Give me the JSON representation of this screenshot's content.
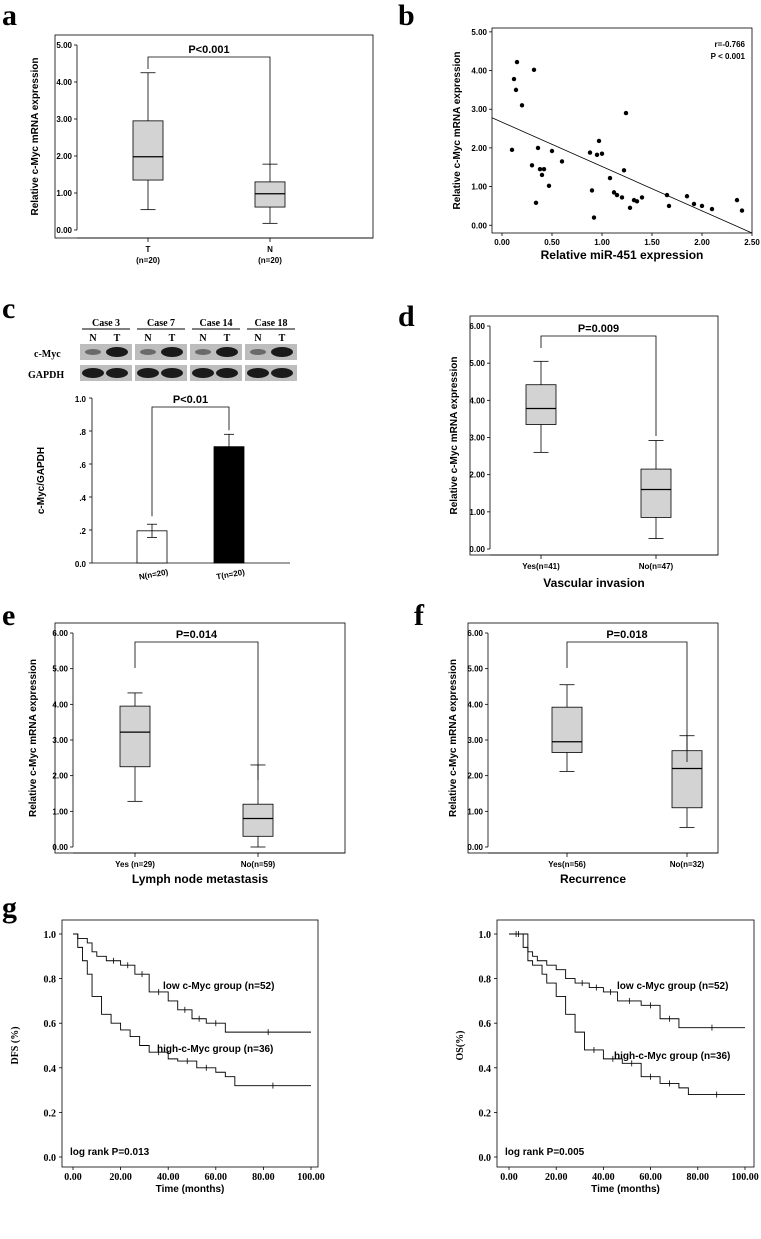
{
  "panels": {
    "a": "a",
    "b": "b",
    "c": "c",
    "d": "d",
    "e": "e",
    "f": "f",
    "g": "g"
  },
  "chart_data": [
    {
      "id": "a",
      "type": "box",
      "ylabel": "Relative c-Myc mRNA expression",
      "yticks": [
        "0.00",
        "1.00",
        "2.00",
        "3.00",
        "4.00",
        "5.00"
      ],
      "ylim": [
        0,
        5
      ],
      "groups": [
        {
          "label": "T",
          "sublabel": "(n=20)",
          "min": 0.55,
          "q1": 1.35,
          "median": 1.98,
          "q3": 2.95,
          "max": 4.25
        },
        {
          "label": "N",
          "sublabel": "(n=20)",
          "min": 0.18,
          "q1": 0.62,
          "median": 0.98,
          "q3": 1.3,
          "max": 1.78
        }
      ],
      "annotation": "P<0.001",
      "xlabel": ""
    },
    {
      "id": "b",
      "type": "scatter",
      "ylabel": "Relative c-Myc mRNA expression",
      "xlabel": "Relative miR-451 expression",
      "xticks": [
        "0.00",
        "0.50",
        "1.00",
        "1.50",
        "2.00",
        "2.50"
      ],
      "xlim": [
        -0.1,
        2.5
      ],
      "yticks": [
        "0.00",
        "1.00",
        "2.00",
        "3.00",
        "4.00",
        "5.00"
      ],
      "ylim": [
        -0.2,
        5.1
      ],
      "stat_r": "r=-0.766",
      "stat_p": "P < 0.001",
      "fit": {
        "x0": -0.1,
        "y0": 2.78,
        "x1": 2.5,
        "y1": -0.2
      },
      "points": [
        [
          0.1,
          1.95
        ],
        [
          0.12,
          3.78
        ],
        [
          0.14,
          3.5
        ],
        [
          0.15,
          4.22
        ],
        [
          0.2,
          3.1
        ],
        [
          0.3,
          1.55
        ],
        [
          0.32,
          4.02
        ],
        [
          0.34,
          0.58
        ],
        [
          0.36,
          2.0
        ],
        [
          0.38,
          1.45
        ],
        [
          0.4,
          1.3
        ],
        [
          0.42,
          1.45
        ],
        [
          0.47,
          1.02
        ],
        [
          0.5,
          1.92
        ],
        [
          0.6,
          1.65
        ],
        [
          0.88,
          1.88
        ],
        [
          0.9,
          0.9
        ],
        [
          0.92,
          0.2
        ],
        [
          0.95,
          1.82
        ],
        [
          0.97,
          2.18
        ],
        [
          1.0,
          1.85
        ],
        [
          1.08,
          1.22
        ],
        [
          1.12,
          0.85
        ],
        [
          1.15,
          0.78
        ],
        [
          1.2,
          0.72
        ],
        [
          1.22,
          1.42
        ],
        [
          1.24,
          2.9
        ],
        [
          1.28,
          0.45
        ],
        [
          1.32,
          0.65
        ],
        [
          1.35,
          0.62
        ],
        [
          1.4,
          0.72
        ],
        [
          1.65,
          0.78
        ],
        [
          1.67,
          0.5
        ],
        [
          1.85,
          0.75
        ],
        [
          1.92,
          0.55
        ],
        [
          2.0,
          0.5
        ],
        [
          2.1,
          0.42
        ],
        [
          2.35,
          0.65
        ],
        [
          2.4,
          0.38
        ]
      ]
    },
    {
      "id": "c",
      "type": "bar",
      "blot": {
        "cases": [
          "Case 3",
          "Case 7",
          "Case 14",
          "Case 18"
        ],
        "lanes": [
          "N",
          "T"
        ],
        "rows": [
          "c-Myc",
          "GAPDH"
        ]
      },
      "ylabel": "c-Myc/GAPDH",
      "yticks": [
        "0.0",
        ".2",
        ".4",
        ".6",
        ".8",
        "1.0"
      ],
      "ylim": [
        0,
        1
      ],
      "categories": [
        "N(n=20)",
        "T(n=20)"
      ],
      "values": [
        0.195,
        0.705
      ],
      "errors": [
        0.04,
        0.075
      ],
      "colors": [
        "#ffffff",
        "#000000"
      ],
      "annotation": "P<0.01"
    },
    {
      "id": "d",
      "type": "box",
      "ylabel": "Relative c-Myc mRNA expression",
      "yticks": [
        "0.00",
        "1.00",
        "2.00",
        "3.00",
        "4.00",
        "5.00",
        "6.00"
      ],
      "ylim": [
        0,
        6
      ],
      "groups": [
        {
          "label": "Yes(n=41)",
          "min": 2.6,
          "q1": 3.35,
          "median": 3.78,
          "q3": 4.42,
          "max": 5.05
        },
        {
          "label": "No(n=47)",
          "min": 0.28,
          "q1": 0.85,
          "median": 1.6,
          "q3": 2.15,
          "max": 2.92
        }
      ],
      "annotation": "P=0.009",
      "xlabel": "Vascular invasion"
    },
    {
      "id": "e",
      "type": "box",
      "ylabel": "Relative c-Myc mRNA expression",
      "yticks": [
        "0.00",
        "1.00",
        "2.00",
        "3.00",
        "4.00",
        "5.00",
        "6.00"
      ],
      "ylim": [
        0,
        6
      ],
      "groups": [
        {
          "label": "Yes (n=29)",
          "min": 1.28,
          "q1": 2.25,
          "median": 3.22,
          "q3": 3.95,
          "max": 4.32
        },
        {
          "label": "No(n=59)",
          "min": 0.0,
          "q1": 0.3,
          "median": 0.8,
          "q3": 1.2,
          "max": 2.3
        }
      ],
      "annotation": "P=0.014",
      "xlabel": "Lymph node metastasis"
    },
    {
      "id": "f",
      "type": "box",
      "ylabel": "Relative c-Myc mRNA expression",
      "yticks": [
        "0.00",
        "1.00",
        "2.00",
        "3.00",
        "4.00",
        "5.00",
        "6.00"
      ],
      "ylim": [
        0,
        6
      ],
      "groups": [
        {
          "label": "Yes(n=56)",
          "min": 2.12,
          "q1": 2.65,
          "median": 2.95,
          "q3": 3.92,
          "max": 4.55
        },
        {
          "label": "No(n=32)",
          "min": 0.55,
          "q1": 1.1,
          "median": 2.2,
          "q3": 2.7,
          "max": 3.12
        }
      ],
      "annotation": "P=0.018",
      "xlabel": "Recurrence"
    },
    {
      "id": "g1",
      "type": "line",
      "ylabel": "DFS (%)",
      "xlabel": "Time (months)",
      "xticks": [
        "0.00",
        "20.00",
        "40.00",
        "60.00",
        "80.00",
        "100.00"
      ],
      "xlim": [
        0,
        100
      ],
      "yticks": [
        "0.0",
        "0.2",
        "0.4",
        "0.6",
        "0.8",
        "1.0"
      ],
      "ylim": [
        0,
        1
      ],
      "series": [
        {
          "name": "low c-Myc group (n=52)",
          "x": [
            0,
            2,
            6,
            8,
            10,
            14,
            20,
            26,
            32,
            40,
            44,
            50,
            56,
            64,
            100
          ],
          "y": [
            1,
            0.98,
            0.96,
            0.92,
            0.9,
            0.88,
            0.86,
            0.82,
            0.74,
            0.7,
            0.66,
            0.62,
            0.6,
            0.56,
            0.56
          ]
        },
        {
          "name": "high-c-Myc group (n=36)",
          "x": [
            0,
            2,
            4,
            6,
            8,
            12,
            16,
            20,
            24,
            28,
            32,
            40,
            44,
            52,
            60,
            64,
            68,
            100
          ],
          "y": [
            1,
            0.94,
            0.88,
            0.82,
            0.72,
            0.64,
            0.6,
            0.57,
            0.54,
            0.5,
            0.47,
            0.44,
            0.43,
            0.4,
            0.38,
            0.36,
            0.32,
            0.32
          ]
        }
      ],
      "annotation": "log rank P=0.013"
    },
    {
      "id": "g2",
      "type": "line",
      "ylabel": "OS(%)",
      "xlabel": "Time (months)",
      "xticks": [
        "0.00",
        "20.00",
        "40.00",
        "60.00",
        "80.00",
        "100.00"
      ],
      "xlim": [
        0,
        100
      ],
      "yticks": [
        "0.0",
        "0.2",
        "0.4",
        "0.6",
        "0.8",
        "1.0"
      ],
      "ylim": [
        0,
        1
      ],
      "series": [
        {
          "name": "low c-Myc group (n=52)",
          "x": [
            0,
            6,
            8,
            10,
            12,
            16,
            20,
            24,
            28,
            34,
            40,
            46,
            56,
            64,
            72,
            100
          ],
          "y": [
            1,
            0.94,
            0.92,
            0.9,
            0.88,
            0.86,
            0.84,
            0.8,
            0.78,
            0.76,
            0.74,
            0.7,
            0.68,
            0.62,
            0.58,
            0.58
          ]
        },
        {
          "name": "high-c-Myc group (n=36)",
          "x": [
            0,
            8,
            10,
            14,
            16,
            20,
            24,
            28,
            32,
            40,
            48,
            56,
            64,
            72,
            76,
            100
          ],
          "y": [
            1,
            0.88,
            0.86,
            0.82,
            0.78,
            0.72,
            0.64,
            0.56,
            0.48,
            0.44,
            0.42,
            0.36,
            0.33,
            0.31,
            0.28,
            0.28
          ]
        }
      ],
      "annotation": "log rank P=0.005"
    }
  ]
}
